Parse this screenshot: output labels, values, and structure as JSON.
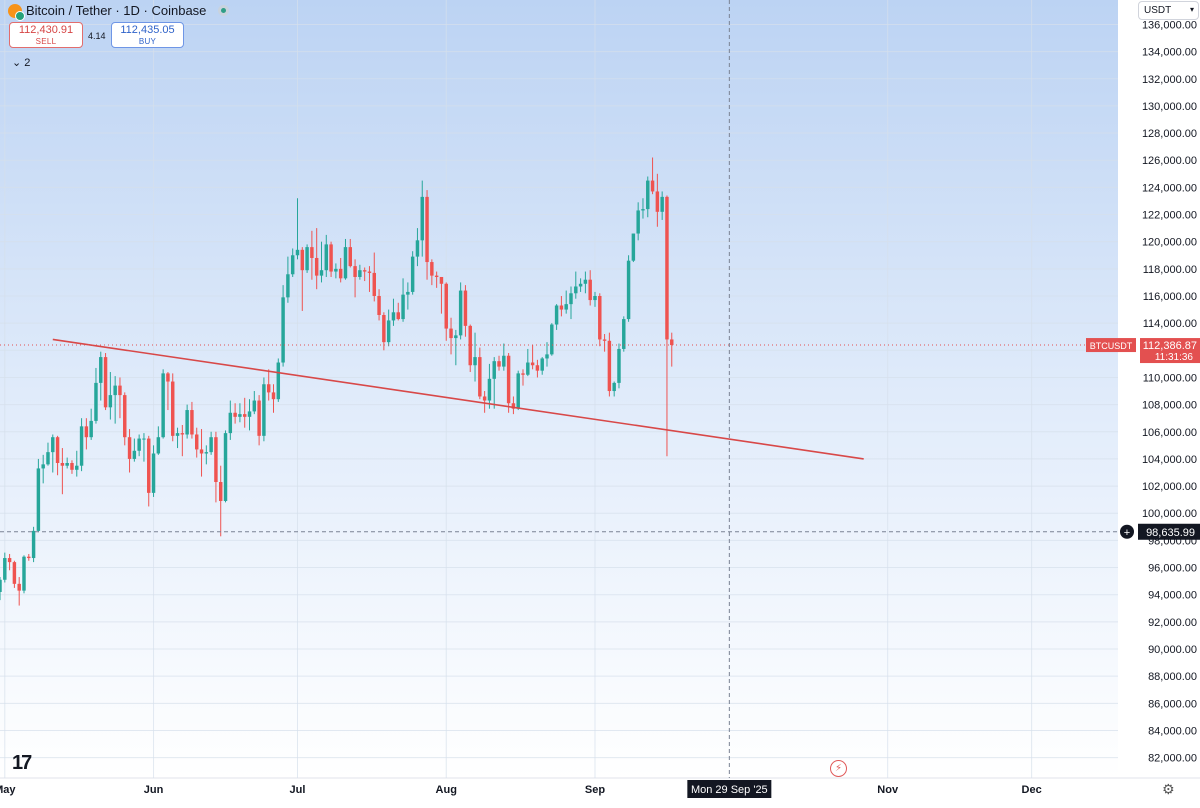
{
  "header": {
    "title": "Bitcoin / Tether · 1D · Coinbase",
    "sell_price": "112,430.91",
    "sell_label": "SELL",
    "spread": "4.14",
    "buy_price": "112,435.05",
    "buy_label": "BUY",
    "indicators_toggle": "⌄ 2"
  },
  "currency_button": "USDT",
  "colors": {
    "up": "#26a69a",
    "down": "#ef5350",
    "trendline": "#d84848",
    "bg_top": "#bcd3f3",
    "bg_bottom": "#ffffff",
    "price_tag": "#e35050"
  },
  "chart_data": {
    "type": "candlestick",
    "y_range": [
      80500,
      137800
    ],
    "y_ticks": [
      82000,
      84000,
      86000,
      88000,
      90000,
      92000,
      94000,
      96000,
      98000,
      100000,
      102000,
      104000,
      106000,
      108000,
      110000,
      112000,
      114000,
      116000,
      118000,
      120000,
      122000,
      124000,
      126000,
      128000,
      130000,
      132000,
      134000,
      136000
    ],
    "y_tick_labels": [
      "82,000.00",
      "84,000.00",
      "86,000.00",
      "88,000.00",
      "90,000.00",
      "92,000.00",
      "94,000.00",
      "96,000.00",
      "98,000.00",
      "100,000.00",
      "102,000.00",
      "104,000.00",
      "106,000.00",
      "108,000.00",
      "110,000.00",
      "112,000.00",
      "114,000.00",
      "116,000.00",
      "118,000.00",
      "120,000.00",
      "122,000.00",
      "124,000.00",
      "126,000.00",
      "128,000.00",
      "130,000.00",
      "132,000.00",
      "134,000.00",
      "136,000.00"
    ],
    "x_ticks": [
      {
        "label": "May",
        "date": "2025-05-01"
      },
      {
        "label": "Jun",
        "date": "2025-06-01"
      },
      {
        "label": "Jul",
        "date": "2025-07-01"
      },
      {
        "label": "Aug",
        "date": "2025-08-01"
      },
      {
        "label": "Sep",
        "date": "2025-09-01"
      },
      {
        "label": "Nov",
        "date": "2025-11-01"
      },
      {
        "label": "Dec",
        "date": "2025-12-01"
      }
    ],
    "x_range": [
      "2025-04-30",
      "2025-12-19"
    ],
    "candles_start": "2025-04-30",
    "candles": [
      [
        94200,
        95300,
        93600,
        95100
      ],
      [
        95100,
        97100,
        94900,
        96700
      ],
      [
        96700,
        97000,
        95800,
        96400
      ],
      [
        96400,
        96500,
        94500,
        94800
      ],
      [
        94800,
        95300,
        93200,
        94300
      ],
      [
        94300,
        96900,
        94100,
        96800
      ],
      [
        96800,
        97000,
        96500,
        96700
      ],
      [
        96700,
        99000,
        96400,
        98700
      ],
      [
        98700,
        104000,
        98600,
        103300
      ],
      [
        103300,
        104300,
        102200,
        103600
      ],
      [
        103600,
        105200,
        103500,
        104500
      ],
      [
        104500,
        105800,
        103000,
        105600
      ],
      [
        105600,
        105700,
        102800,
        103700
      ],
      [
        103700,
        104800,
        101400,
        103500
      ],
      [
        103500,
        104100,
        103300,
        103700
      ],
      [
        103700,
        103900,
        102900,
        103200
      ],
      [
        103200,
        104600,
        102700,
        103500
      ],
      [
        103500,
        107000,
        103100,
        106400
      ],
      [
        106400,
        107000,
        104700,
        105600
      ],
      [
        105600,
        107700,
        105400,
        106800
      ],
      [
        106800,
        110700,
        106600,
        109600
      ],
      [
        109600,
        111900,
        108300,
        111500
      ],
      [
        111500,
        111800,
        107600,
        107800
      ],
      [
        107800,
        110400,
        106900,
        108700
      ],
      [
        108700,
        110100,
        106600,
        109400
      ],
      [
        109400,
        110000,
        107000,
        108700
      ],
      [
        108700,
        108900,
        105000,
        105600
      ],
      [
        105600,
        106200,
        103000,
        104000
      ],
      [
        104000,
        105500,
        103800,
        104600
      ],
      [
        104600,
        105800,
        104200,
        105500
      ],
      [
        105500,
        105900,
        103800,
        105500
      ],
      [
        105500,
        105700,
        100500,
        101500
      ],
      [
        101500,
        105000,
        101200,
        104400
      ],
      [
        104400,
        106400,
        104300,
        105600
      ],
      [
        105600,
        110600,
        105500,
        110300
      ],
      [
        110300,
        110400,
        107600,
        109700
      ],
      [
        109700,
        110300,
        105300,
        105700
      ],
      [
        105700,
        106300,
        104800,
        105900
      ],
      [
        105900,
        106500,
        104200,
        105800
      ],
      [
        105800,
        108000,
        105500,
        107600
      ],
      [
        107600,
        108200,
        105500,
        105800
      ],
      [
        105800,
        106300,
        104100,
        104700
      ],
      [
        104700,
        106200,
        102700,
        104400
      ],
      [
        104400,
        105000,
        103600,
        104500
      ],
      [
        104500,
        106000,
        104300,
        105600
      ],
      [
        105600,
        106000,
        100800,
        102300
      ],
      [
        102300,
        103500,
        98300,
        100900
      ],
      [
        100900,
        106100,
        100800,
        105900
      ],
      [
        105900,
        108300,
        105400,
        107400
      ],
      [
        107400,
        108100,
        106600,
        107100
      ],
      [
        107100,
        108100,
        106700,
        107300
      ],
      [
        107300,
        108500,
        106300,
        107100
      ],
      [
        107100,
        108400,
        106100,
        107500
      ],
      [
        107500,
        109000,
        107300,
        108300
      ],
      [
        108300,
        108700,
        105000,
        105700
      ],
      [
        105700,
        110000,
        105300,
        109500
      ],
      [
        109500,
        110600,
        108300,
        108900
      ],
      [
        108900,
        109500,
        107400,
        108400
      ],
      [
        108400,
        111400,
        108200,
        111100
      ],
      [
        111100,
        116800,
        110800,
        115900
      ],
      [
        115900,
        118900,
        115500,
        117600
      ],
      [
        117600,
        119500,
        117400,
        119000
      ],
      [
        119000,
        123200,
        118700,
        119400
      ],
      [
        119400,
        119600,
        114900,
        117900
      ],
      [
        117900,
        119800,
        117700,
        119600
      ],
      [
        119600,
        120800,
        117200,
        118800
      ],
      [
        118800,
        121000,
        116500,
        117500
      ],
      [
        117500,
        120000,
        117000,
        117900
      ],
      [
        117900,
        120500,
        117400,
        119800
      ],
      [
        119800,
        120000,
        117400,
        117800
      ],
      [
        117800,
        118400,
        117300,
        118000
      ],
      [
        118000,
        118800,
        117000,
        117300
      ],
      [
        117300,
        120200,
        117200,
        119600
      ],
      [
        119600,
        120200,
        118100,
        118200
      ],
      [
        118200,
        118700,
        115900,
        117400
      ],
      [
        117400,
        118300,
        117200,
        117900
      ],
      [
        117900,
        118100,
        117100,
        117800
      ],
      [
        117800,
        118200,
        116300,
        117700
      ],
      [
        117700,
        119200,
        115600,
        116000
      ],
      [
        116000,
        116500,
        114200,
        114600
      ],
      [
        114600,
        114800,
        112000,
        112600
      ],
      [
        112600,
        115000,
        112300,
        114200
      ],
      [
        114200,
        115800,
        113800,
        114800
      ],
      [
        114800,
        115500,
        114200,
        114300
      ],
      [
        114300,
        117300,
        114100,
        116100
      ],
      [
        116100,
        117000,
        115000,
        116300
      ],
      [
        116300,
        119300,
        116100,
        118900
      ],
      [
        118900,
        121000,
        118200,
        120100
      ],
      [
        120100,
        124500,
        118900,
        123300
      ],
      [
        123300,
        123800,
        117200,
        118500
      ],
      [
        118500,
        118700,
        116800,
        117500
      ],
      [
        117500,
        117800,
        116600,
        117400
      ],
      [
        117400,
        117400,
        114700,
        116900
      ],
      [
        116900,
        117000,
        112700,
        113600
      ],
      [
        113600,
        114400,
        111700,
        112900
      ],
      [
        112900,
        113500,
        110900,
        113100
      ],
      [
        113100,
        117000,
        112800,
        116400
      ],
      [
        116400,
        116800,
        113000,
        113800
      ],
      [
        113800,
        113900,
        110400,
        110900
      ],
      [
        110900,
        113300,
        109700,
        111500
      ],
      [
        111500,
        112200,
        108400,
        108600
      ],
      [
        108600,
        109000,
        107400,
        108300
      ],
      [
        108300,
        111000,
        107700,
        109900
      ],
      [
        109900,
        111500,
        107700,
        111200
      ],
      [
        111200,
        111600,
        110500,
        110800
      ],
      [
        110800,
        112500,
        110500,
        111600
      ],
      [
        111600,
        111800,
        107400,
        108100
      ],
      [
        108100,
        108600,
        107300,
        107700
      ],
      [
        107700,
        110500,
        107600,
        110300
      ],
      [
        110300,
        110600,
        109400,
        110200
      ],
      [
        110200,
        112100,
        110100,
        111100
      ],
      [
        111100,
        112400,
        110600,
        110900
      ],
      [
        110900,
        111300,
        110000,
        110500
      ],
      [
        110500,
        111500,
        110200,
        111400
      ],
      [
        111400,
        112600,
        110800,
        111700
      ],
      [
        111700,
        114000,
        111600,
        113900
      ],
      [
        113900,
        115400,
        113500,
        115300
      ],
      [
        115300,
        116000,
        114500,
        115000
      ],
      [
        115000,
        116400,
        114700,
        115400
      ],
      [
        115400,
        116700,
        114300,
        116200
      ],
      [
        116200,
        117800,
        115800,
        116700
      ],
      [
        116700,
        117300,
        116300,
        116900
      ],
      [
        116900,
        117800,
        116200,
        117200
      ],
      [
        117200,
        117900,
        115300,
        115700
      ],
      [
        115700,
        116300,
        115200,
        116000
      ],
      [
        116000,
        116200,
        112300,
        112800
      ],
      [
        112800,
        113200,
        111900,
        112700
      ],
      [
        112700,
        113300,
        108600,
        109000
      ],
      [
        109000,
        109700,
        108600,
        109600
      ],
      [
        109600,
        112500,
        109200,
        112100
      ],
      [
        112100,
        114500,
        111900,
        114300
      ],
      [
        114300,
        119000,
        114100,
        118600
      ],
      [
        118600,
        120600,
        118500,
        120600
      ],
      [
        120600,
        122900,
        120100,
        122300
      ],
      [
        122300,
        123200,
        121700,
        122400
      ],
      [
        122400,
        124800,
        121800,
        124500
      ],
      [
        124500,
        126200,
        123500,
        123700
      ],
      [
        123700,
        125000,
        121100,
        122200
      ],
      [
        122200,
        123700,
        121600,
        123300
      ],
      [
        123300,
        123400,
        104200,
        112800
      ],
      [
        112800,
        113300,
        110800,
        112386.87
      ]
    ],
    "trendline": [
      {
        "date": "2025-05-11",
        "value": 112800
      },
      {
        "date": "2025-10-27",
        "value": 104000
      }
    ],
    "last_price": {
      "symbol": "BTCUSDT",
      "value": "112,386.87",
      "countdown": "11:31:36",
      "price": 112386.87
    },
    "crosshair": {
      "date": "2025-09-29",
      "date_label": "Mon 29 Sep '25",
      "value": 98635.99,
      "value_label": "98,635.99"
    }
  }
}
